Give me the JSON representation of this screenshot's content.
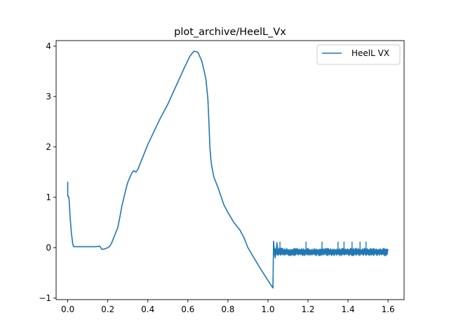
{
  "chart_data": {
    "type": "line",
    "title": "plot_archive/HeelL_Vx",
    "xlabel": "",
    "ylabel": "",
    "xlim": [
      -0.058,
      1.68
    ],
    "ylim": [
      -1.03,
      4.11
    ],
    "xticks": [
      0.0,
      0.2,
      0.4,
      0.6,
      0.8,
      1.0,
      1.2,
      1.4,
      1.6
    ],
    "xtick_labels": [
      "0.0",
      "0.2",
      "0.4",
      "0.6",
      "0.8",
      "1.0",
      "1.2",
      "1.4",
      "1.6"
    ],
    "yticks": [
      -1,
      0,
      1,
      2,
      3,
      4
    ],
    "ytick_labels": [
      "−1",
      "0",
      "1",
      "2",
      "3",
      "4"
    ],
    "grid": false,
    "legend": {
      "position": "top-right",
      "entries": [
        "HeelL VX"
      ]
    },
    "series": [
      {
        "name": "HeelL VX",
        "color": "#1f77b4",
        "x": [
          0.0,
          0.0,
          0.003,
          0.004,
          0.006,
          0.009,
          0.012,
          0.018,
          0.025,
          0.028,
          0.03,
          0.06,
          0.1,
          0.14,
          0.16,
          0.17,
          0.18,
          0.2,
          0.21,
          0.22,
          0.24,
          0.25,
          0.26,
          0.27,
          0.29,
          0.3,
          0.32,
          0.33,
          0.34,
          0.35,
          0.36,
          0.38,
          0.4,
          0.43,
          0.46,
          0.5,
          0.54,
          0.58,
          0.61,
          0.63,
          0.65,
          0.67,
          0.69,
          0.7,
          0.705,
          0.71,
          0.715,
          0.72,
          0.73,
          0.75,
          0.78,
          0.8,
          0.83,
          0.86,
          0.88,
          0.9,
          0.93,
          0.96,
          1.0,
          1.025,
          1.028,
          1.032,
          1.036,
          1.04,
          1.045,
          1.05,
          1.055,
          1.06,
          1.08,
          1.1,
          1.15,
          1.2,
          1.25,
          1.3,
          1.35,
          1.4,
          1.45,
          1.5,
          1.55,
          1.6
        ],
        "y": [
          1.3,
          1.02,
          1.02,
          1.0,
          1.0,
          0.8,
          0.6,
          0.3,
          0.08,
          0.03,
          0.02,
          0.02,
          0.02,
          0.02,
          0.03,
          -0.03,
          -0.03,
          0.0,
          0.03,
          0.1,
          0.3,
          0.4,
          0.6,
          0.82,
          1.15,
          1.3,
          1.48,
          1.53,
          1.5,
          1.55,
          1.65,
          1.85,
          2.05,
          2.3,
          2.55,
          2.85,
          3.2,
          3.55,
          3.8,
          3.9,
          3.88,
          3.7,
          3.35,
          2.95,
          2.5,
          2.0,
          1.75,
          1.6,
          1.4,
          1.2,
          0.85,
          0.7,
          0.5,
          0.35,
          0.2,
          0.0,
          -0.2,
          -0.4,
          -0.65,
          -0.8,
          0.13,
          -0.05,
          -0.2,
          -0.1,
          0.1,
          -0.15,
          -0.05,
          -0.1,
          -0.08,
          -0.1,
          -0.08,
          -0.1,
          -0.08,
          -0.1,
          -0.08,
          -0.1,
          -0.08,
          -0.1,
          -0.08,
          -0.05
        ],
        "noise_band": {
          "x_range": [
            1.032,
            1.6
          ],
          "lower": -0.17,
          "upper": 0.0,
          "spikes_x": [
            1.06,
            1.19,
            1.27,
            1.35,
            1.38,
            1.42,
            1.46,
            1.49
          ],
          "spikes_y": 0.12
        }
      }
    ]
  }
}
